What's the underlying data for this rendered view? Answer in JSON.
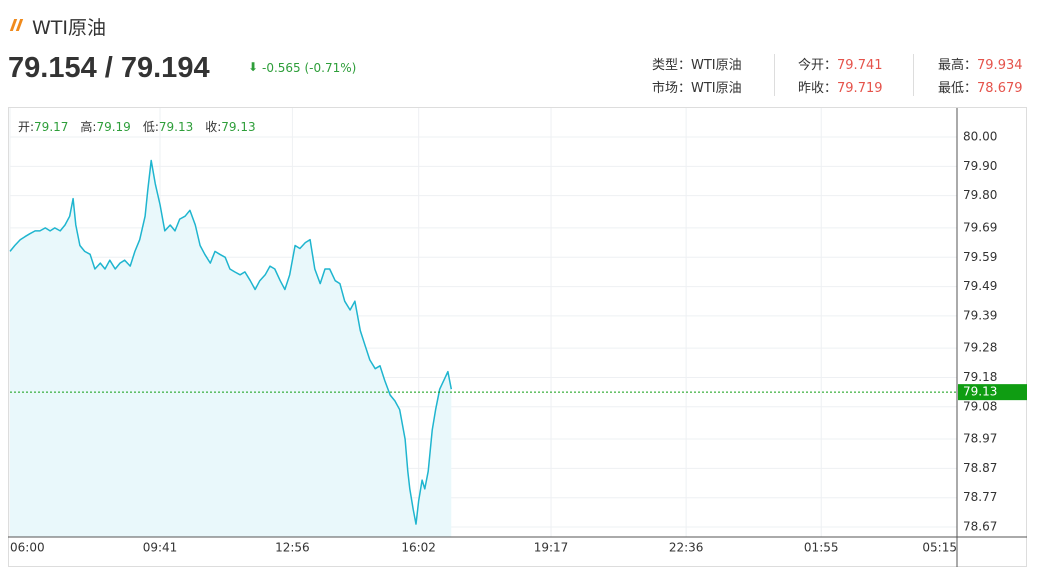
{
  "header": {
    "title": "WTI原油",
    "price": "79.154 / 79.194",
    "change": "-0.565 (-0.71%)",
    "info": [
      [
        {
          "label": "类型：",
          "value": "WTI原油"
        },
        {
          "label": "今开：",
          "value": 79.741
        },
        {
          "label": "最高：",
          "value": 79.934
        }
      ],
      [
        {
          "label": "市场：",
          "value": "WTI原油"
        },
        {
          "label": "昨收：",
          "value": 79.719
        },
        {
          "label": "最低：",
          "value": 78.679
        }
      ]
    ]
  },
  "chart_data": {
    "type": "line",
    "ohlc": [
      {
        "label": "开:",
        "value": 79.17
      },
      {
        "label": "高:",
        "value": 79.19
      },
      {
        "label": "低:",
        "value": 79.13
      },
      {
        "label": "收:",
        "value": 79.13
      }
    ],
    "x": [
      0,
      7,
      15,
      22,
      29,
      37,
      44,
      52,
      59,
      66,
      74,
      81,
      88,
      93,
      97,
      103,
      110,
      118,
      125,
      133,
      140,
      147,
      155,
      162,
      169,
      177,
      184,
      191,
      199,
      203,
      208,
      214,
      221,
      228,
      236,
      243,
      250,
      258,
      265,
      273,
      280,
      287,
      295,
      302,
      309,
      317,
      324,
      331,
      339,
      346,
      354,
      361,
      368,
      376,
      383,
      390,
      398,
      405,
      412,
      420,
      427,
      435,
      442,
      449,
      457,
      464,
      471,
      479,
      486,
      493,
      501,
      508,
      516,
      523,
      530,
      538,
      545,
      552,
      560,
      567,
      574,
      582,
      586,
      589,
      594,
      598,
      602,
      607,
      611,
      616,
      622,
      627,
      633,
      639,
      645,
      650
    ],
    "values": [
      79.61,
      79.63,
      79.65,
      79.66,
      79.67,
      79.68,
      79.68,
      79.69,
      79.68,
      79.69,
      79.68,
      79.7,
      79.73,
      79.79,
      79.7,
      79.63,
      79.61,
      79.6,
      79.55,
      79.57,
      79.55,
      79.58,
      79.55,
      79.57,
      79.58,
      79.56,
      79.61,
      79.65,
      79.73,
      79.82,
      79.92,
      79.84,
      79.77,
      79.68,
      79.7,
      79.68,
      79.72,
      79.73,
      79.75,
      79.7,
      79.63,
      79.6,
      79.57,
      79.61,
      79.6,
      79.59,
      79.55,
      79.54,
      79.53,
      79.54,
      79.51,
      79.48,
      79.51,
      79.53,
      79.56,
      79.55,
      79.51,
      79.48,
      79.53,
      79.63,
      79.62,
      79.64,
      79.65,
      79.55,
      79.5,
      79.55,
      79.55,
      79.51,
      79.5,
      79.44,
      79.41,
      79.44,
      79.34,
      79.29,
      79.24,
      79.21,
      79.22,
      79.17,
      79.12,
      79.1,
      79.07,
      78.97,
      78.86,
      78.8,
      78.73,
      78.68,
      78.76,
      78.83,
      78.8,
      78.86,
      79.0,
      79.07,
      79.14,
      79.17,
      79.2,
      79.14
    ],
    "color": "#1fb5cf",
    "area_color": "#e9f8fb",
    "last": {
      "value": 79.13
    },
    "last_color": "#0f9d12",
    "xlim": [
      0,
      1395
    ],
    "xticks": [
      {
        "value": 0,
        "label": "06:00"
      },
      {
        "value": 221,
        "label": "09:41"
      },
      {
        "value": 416,
        "label": "12:56"
      },
      {
        "value": 602,
        "label": "16:02"
      },
      {
        "value": 797,
        "label": "19:17"
      },
      {
        "value": 996,
        "label": "22:36"
      },
      {
        "value": 1195,
        "label": "01:55"
      },
      {
        "value": 1395,
        "label": "05:15"
      }
    ],
    "ylim": [
      78.636,
      80.099
    ],
    "yticks": [
      {
        "value": 80,
        "label": "80.00"
      },
      {
        "value": 79.9,
        "label": "79.90"
      },
      {
        "value": 79.8,
        "label": "79.80"
      },
      79.69,
      79.59,
      79.49,
      79.39,
      79.28,
      79.18,
      79.08,
      78.97,
      78.87,
      78.77,
      78.67
    ],
    "grid": true
  }
}
